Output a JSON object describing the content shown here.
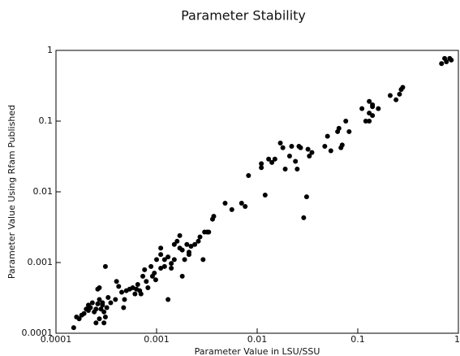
{
  "chart_data": {
    "type": "scatter",
    "title": "Parameter Stability",
    "x_label": "Parameter Value in LSU/SSU",
    "y_label": "Parameter Value Using Rfam Published",
    "log_x": true,
    "log_y": true,
    "grid": false,
    "color": "#000000",
    "xlim": [
      0.0001,
      1
    ],
    "ylim": [
      0.0001,
      1
    ],
    "xticks": [
      0.0001,
      0.001,
      0.01,
      0.1,
      1
    ],
    "yticks": [
      0.0001,
      0.001,
      0.01,
      0.1,
      1
    ],
    "x": [
      0.00015,
      0.00016,
      0.00017,
      0.00018,
      0.00019,
      0.0002,
      0.00021,
      0.00021,
      0.00022,
      0.00023,
      0.00024,
      0.00025,
      0.00026,
      0.00027,
      0.00028,
      0.00029,
      0.0003,
      0.00025,
      0.00027,
      0.00026,
      0.00027,
      0.00031,
      0.00029,
      0.00032,
      0.00033,
      0.00035,
      0.00031,
      0.0003,
      0.00039,
      0.0004,
      0.00042,
      0.00045,
      0.00047,
      0.00048,
      0.0005,
      0.00054,
      0.00058,
      0.00061,
      0.00063,
      0.00065,
      0.00068,
      0.0007,
      0.00073,
      0.00076,
      0.00079,
      0.00082,
      0.00088,
      0.00091,
      0.00095,
      0.00098,
      0.001,
      0.0011,
      0.0011,
      0.0011,
      0.0012,
      0.0012,
      0.0013,
      0.0013,
      0.0014,
      0.0014,
      0.0015,
      0.0015,
      0.0016,
      0.0017,
      0.0017,
      0.0018,
      0.0018,
      0.0019,
      0.002,
      0.0021,
      0.0021,
      0.0022,
      0.0024,
      0.0026,
      0.0027,
      0.0029,
      0.003,
      0.0032,
      0.0033,
      0.0036,
      0.0037,
      0.0048,
      0.0056,
      0.007,
      0.0076,
      0.0082,
      0.011,
      0.011,
      0.012,
      0.013,
      0.014,
      0.015,
      0.017,
      0.018,
      0.019,
      0.021,
      0.022,
      0.024,
      0.025,
      0.026,
      0.027,
      0.029,
      0.031,
      0.032,
      0.033,
      0.035,
      0.047,
      0.05,
      0.054,
      0.063,
      0.065,
      0.068,
      0.07,
      0.076,
      0.082,
      0.11,
      0.12,
      0.13,
      0.13,
      0.14,
      0.14,
      0.13,
      0.14,
      0.16,
      0.21,
      0.24,
      0.26,
      0.27,
      0.28,
      0.68,
      0.73,
      0.76,
      0.82,
      0.85
    ],
    "values": [
      0.00012,
      0.00017,
      0.00016,
      0.00018,
      0.00019,
      0.00022,
      0.00025,
      0.00021,
      0.00023,
      0.00027,
      0.0002,
      0.00022,
      0.00026,
      0.0003,
      0.00022,
      0.00025,
      0.0002,
      0.00014,
      0.00016,
      0.00042,
      0.00044,
      0.00088,
      0.00027,
      0.00023,
      0.00032,
      0.00027,
      0.00017,
      0.00014,
      0.0003,
      0.00054,
      0.00046,
      0.00038,
      0.00023,
      0.0003,
      0.0004,
      0.00042,
      0.00044,
      0.00036,
      0.00042,
      0.00049,
      0.0004,
      0.00036,
      0.00064,
      0.00079,
      0.00054,
      0.00044,
      0.00088,
      0.00064,
      0.00071,
      0.00057,
      0.0011,
      0.00083,
      0.0013,
      0.0016,
      0.00088,
      0.0011,
      0.0012,
      0.0003,
      0.00083,
      0.00097,
      0.0011,
      0.0018,
      0.002,
      0.0016,
      0.0024,
      0.0015,
      0.00064,
      0.0011,
      0.0018,
      0.0014,
      0.0013,
      0.0017,
      0.0018,
      0.002,
      0.0023,
      0.0011,
      0.0027,
      0.0027,
      0.0027,
      0.0041,
      0.0045,
      0.0069,
      0.0056,
      0.0069,
      0.0062,
      0.017,
      0.025,
      0.022,
      0.009,
      0.029,
      0.026,
      0.029,
      0.049,
      0.042,
      0.021,
      0.032,
      0.044,
      0.027,
      0.021,
      0.044,
      0.042,
      0.0043,
      0.0085,
      0.04,
      0.032,
      0.036,
      0.044,
      0.061,
      0.038,
      0.071,
      0.079,
      0.042,
      0.046,
      0.1,
      0.071,
      0.15,
      0.1,
      0.13,
      0.19,
      0.17,
      0.16,
      0.1,
      0.12,
      0.15,
      0.23,
      0.2,
      0.24,
      0.28,
      0.3,
      0.65,
      0.77,
      0.69,
      0.77,
      0.73
    ]
  }
}
